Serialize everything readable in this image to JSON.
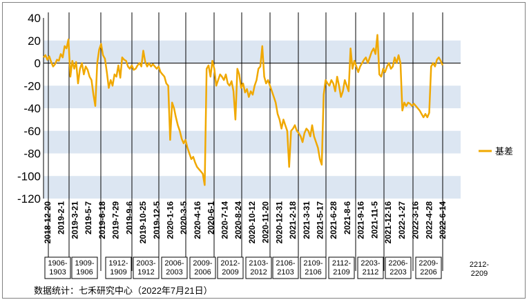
{
  "chart_data": {
    "type": "line",
    "title": "",
    "xlabel": "",
    "ylabel": "",
    "ylim": [
      -120,
      40
    ],
    "yticks": [
      40,
      20,
      0,
      -20,
      -40,
      -60,
      -80,
      -100,
      -120
    ],
    "band_color": "#dce6f2",
    "legend_position": "right",
    "x_tick_labels": [
      "2018-12-20",
      "2019-2-1",
      "2019-3-21",
      "2019-5-7",
      "2019-6-18",
      "2019-7-29",
      "2019-9-6",
      "2019-10-25",
      "2019-12-5",
      "2020-1-16",
      "2020-3-5",
      "2020-4-16",
      "2020-6-1",
      "2020-7-14",
      "2020-8-24",
      "2020-10-12",
      "2020-11-20",
      "2020-12-31",
      "2021-2-18",
      "2021-3-31",
      "2021-5-17",
      "2021-6-28",
      "2021-8-6",
      "2021-9-16",
      "2021-11-5",
      "2021-12-16",
      "2022-1-27",
      "2022-3-16",
      "2022-4-28",
      "2022-6-14"
    ],
    "contract_periods": [
      {
        "label": "1906-\n1903"
      },
      {
        "label": "1909-\n1906"
      },
      {
        "label": "1912-\n1909"
      },
      {
        "label": "2003-\n1912"
      },
      {
        "label": "2006-\n2003"
      },
      {
        "label": "2009-\n2006"
      },
      {
        "label": "2012-\n2009"
      },
      {
        "label": "2103-\n2012"
      },
      {
        "label": "2106-\n2103"
      },
      {
        "label": "2109-\n2106"
      },
      {
        "label": "2112-\n2109"
      },
      {
        "label": "2203-\n2112"
      },
      {
        "label": "2206-\n2203"
      },
      {
        "label": "2209-\n2206"
      },
      {
        "label": "2212-\n2209"
      }
    ],
    "series": [
      {
        "name": "基差",
        "color": "#f0a800",
        "values": [
          [
            0,
            5
          ],
          [
            1,
            7
          ],
          [
            2,
            3
          ],
          [
            3,
            6
          ],
          [
            4,
            1
          ],
          [
            5,
            -3
          ],
          [
            6,
            -1
          ],
          [
            7,
            3
          ],
          [
            8,
            2
          ],
          [
            9,
            8
          ],
          [
            10,
            5
          ],
          [
            11,
            15
          ],
          [
            12,
            13
          ],
          [
            13,
            21
          ],
          [
            14,
            -12
          ],
          [
            15,
            2
          ],
          [
            16,
            -5
          ],
          [
            17,
            1
          ],
          [
            18,
            -18
          ],
          [
            19,
            -5
          ],
          [
            20,
            0
          ],
          [
            21,
            -10
          ],
          [
            22,
            -3
          ],
          [
            23,
            -6
          ],
          [
            24,
            -12
          ],
          [
            25,
            -15
          ],
          [
            26,
            -28
          ],
          [
            27,
            -38
          ],
          [
            28,
            0
          ],
          [
            29,
            12
          ],
          [
            30,
            17
          ],
          [
            31,
            7
          ],
          [
            32,
            4
          ],
          [
            33,
            -8
          ],
          [
            34,
            -22
          ],
          [
            35,
            -15
          ],
          [
            36,
            -20
          ],
          [
            37,
            -10
          ],
          [
            38,
            -12
          ],
          [
            39,
            -2
          ],
          [
            40,
            -13
          ],
          [
            41,
            5
          ],
          [
            42,
            3
          ],
          [
            43,
            2
          ],
          [
            44,
            -3
          ],
          [
            45,
            -5
          ],
          [
            46,
            -2
          ],
          [
            47,
            -6
          ],
          [
            48,
            -5
          ],
          [
            49,
            -2
          ],
          [
            50,
            0
          ],
          [
            51,
            -3
          ],
          [
            52,
            11
          ],
          [
            53,
            1
          ],
          [
            54,
            -3
          ],
          [
            55,
            0
          ],
          [
            56,
            -3
          ],
          [
            57,
            -1
          ],
          [
            58,
            -3
          ],
          [
            59,
            -5
          ],
          [
            60,
            -3
          ],
          [
            61,
            -8
          ],
          [
            62,
            -10
          ],
          [
            63,
            -12
          ],
          [
            64,
            -18
          ],
          [
            65,
            -20
          ],
          [
            66,
            -68
          ],
          [
            67,
            -35
          ],
          [
            68,
            -40
          ],
          [
            69,
            -48
          ],
          [
            70,
            -55
          ],
          [
            71,
            -60
          ],
          [
            72,
            -67
          ],
          [
            73,
            -71
          ],
          [
            74,
            -68
          ],
          [
            75,
            -75
          ],
          [
            76,
            -80
          ],
          [
            77,
            -85
          ],
          [
            78,
            -83
          ],
          [
            79,
            -88
          ],
          [
            80,
            -92
          ],
          [
            81,
            -94
          ],
          [
            82,
            -96
          ],
          [
            83,
            -98
          ],
          [
            84,
            -108
          ],
          [
            85,
            -5
          ],
          [
            86,
            -2
          ],
          [
            87,
            -12
          ],
          [
            88,
            2
          ],
          [
            89,
            -5
          ],
          [
            90,
            -20
          ],
          [
            91,
            -15
          ],
          [
            92,
            -10
          ],
          [
            93,
            -12
          ],
          [
            94,
            -15
          ],
          [
            95,
            -10
          ],
          [
            96,
            -18
          ],
          [
            97,
            -20
          ],
          [
            98,
            -16
          ],
          [
            99,
            -25
          ],
          [
            100,
            -50
          ],
          [
            101,
            -5
          ],
          [
            102,
            -10
          ],
          [
            103,
            -22
          ],
          [
            104,
            -18
          ],
          [
            105,
            -26
          ],
          [
            106,
            -23
          ],
          [
            107,
            -30
          ],
          [
            108,
            -25
          ],
          [
            109,
            -28
          ],
          [
            110,
            -20
          ],
          [
            111,
            -15
          ],
          [
            112,
            -5
          ],
          [
            113,
            -3
          ],
          [
            114,
            15
          ],
          [
            115,
            -12
          ],
          [
            116,
            -18
          ],
          [
            117,
            -15
          ],
          [
            118,
            -20
          ],
          [
            119,
            -25
          ],
          [
            120,
            -30
          ],
          [
            121,
            -35
          ],
          [
            122,
            -45
          ],
          [
            123,
            -50
          ],
          [
            124,
            -58
          ],
          [
            125,
            -50
          ],
          [
            126,
            -55
          ],
          [
            127,
            -60
          ],
          [
            128,
            -92
          ],
          [
            129,
            -60
          ],
          [
            130,
            -58
          ],
          [
            131,
            -55
          ],
          [
            132,
            -60
          ],
          [
            133,
            -62
          ],
          [
            134,
            -65
          ],
          [
            135,
            -70
          ],
          [
            136,
            -62
          ],
          [
            137,
            -58
          ],
          [
            138,
            -60
          ],
          [
            139,
            -65
          ],
          [
            140,
            -55
          ],
          [
            141,
            -65
          ],
          [
            142,
            -70
          ],
          [
            143,
            -75
          ],
          [
            144,
            -85
          ],
          [
            145,
            -90
          ],
          [
            146,
            -28
          ],
          [
            147,
            -15
          ],
          [
            148,
            -18
          ],
          [
            149,
            -20
          ],
          [
            150,
            -15
          ],
          [
            151,
            -18
          ],
          [
            152,
            -25
          ],
          [
            153,
            -12
          ],
          [
            154,
            -20
          ],
          [
            155,
            -30
          ],
          [
            156,
            -25
          ],
          [
            157,
            -15
          ],
          [
            158,
            -20
          ],
          [
            159,
            -25
          ],
          [
            160,
            13
          ],
          [
            161,
            -5
          ],
          [
            162,
            2
          ],
          [
            163,
            -3
          ],
          [
            164,
            -8
          ],
          [
            165,
            -3
          ],
          [
            166,
            0
          ],
          [
            167,
            3
          ],
          [
            168,
            5
          ],
          [
            169,
            0
          ],
          [
            170,
            5
          ],
          [
            171,
            10
          ],
          [
            172,
            13
          ],
          [
            173,
            8
          ],
          [
            174,
            25
          ],
          [
            175,
            -10
          ],
          [
            176,
            -12
          ],
          [
            177,
            -5
          ],
          [
            178,
            -8
          ],
          [
            179,
            -3
          ],
          [
            180,
            0
          ],
          [
            181,
            -5
          ],
          [
            182,
            -3
          ],
          [
            183,
            5
          ],
          [
            184,
            0
          ],
          [
            185,
            7
          ],
          [
            186,
            0
          ],
          [
            187,
            -42
          ],
          [
            188,
            -35
          ],
          [
            189,
            -38
          ],
          [
            190,
            -35
          ],
          [
            191,
            -36
          ],
          [
            192,
            -38
          ],
          [
            193,
            -36
          ],
          [
            194,
            -38
          ],
          [
            195,
            -40
          ],
          [
            196,
            -42
          ],
          [
            197,
            -45
          ],
          [
            198,
            -48
          ],
          [
            199,
            -45
          ],
          [
            200,
            -48
          ],
          [
            201,
            -44
          ],
          [
            202,
            -3
          ],
          [
            203,
            0
          ],
          [
            204,
            -3
          ],
          [
            205,
            3
          ],
          [
            206,
            5
          ],
          [
            207,
            2
          ],
          [
            208,
            -2
          ]
        ]
      }
    ]
  },
  "source_note": "数据统计：七禾研究中心（2022年7月21日）"
}
